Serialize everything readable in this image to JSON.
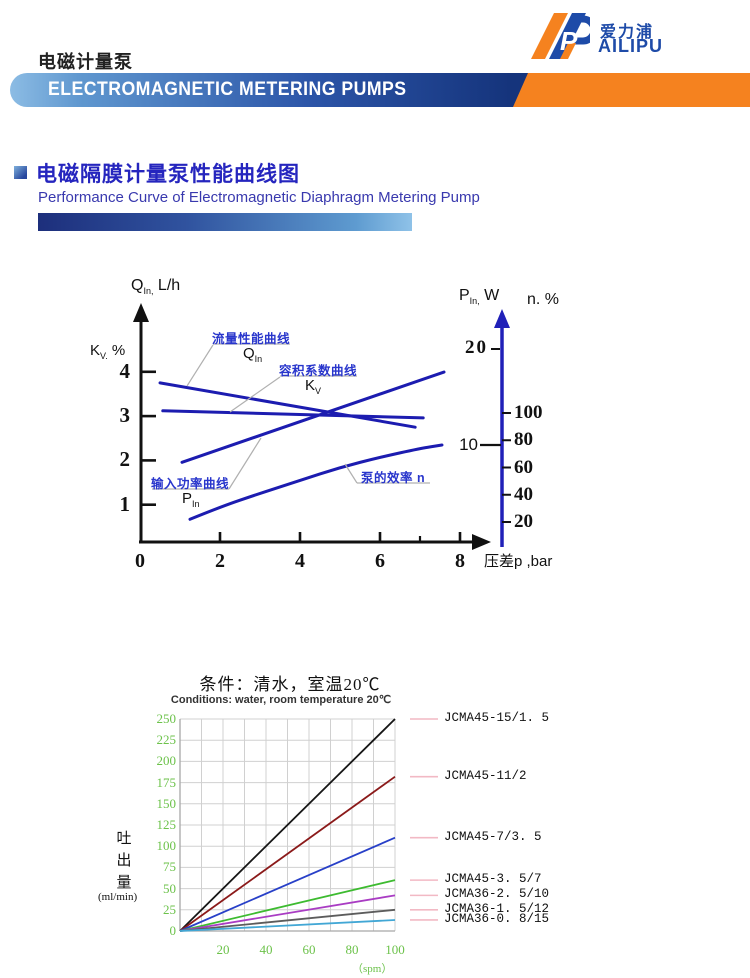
{
  "header": {
    "doc_title": "电磁计量泵",
    "banner": "ELECTROMAGNETIC METERING PUMPS",
    "logo_cn": "爱力浦",
    "logo_en": "AILIPU",
    "orange": "#f5821f",
    "logo_blue": "#1e4ba8"
  },
  "section": {
    "title": "电磁隔膜计量泵性能曲线图",
    "subtitle": "Performance Curve of Electromagnetic Diaphragm Metering Pump"
  },
  "chart_data": [
    {
      "type": "line",
      "name": "performance-curves",
      "x_label": "压差p ,bar",
      "xlim": [
        0,
        8.8
      ],
      "x_ticks": [
        2,
        4,
        6,
        8
      ],
      "x_origin_label": "0",
      "x_minor_ticks": [
        7
      ],
      "left_axis": {
        "label_q": {
          "main": "Q",
          "sub": "In,",
          "rest": " L/h"
        },
        "label_kv": {
          "main": "K",
          "sub": "V.",
          "rest": " %"
        },
        "ticks": [
          4,
          3,
          2,
          1
        ]
      },
      "right_axis_p": {
        "label": {
          "main": "P",
          "sub": "In,",
          "rest": " W"
        },
        "ticks": [
          20,
          10
        ]
      },
      "right_axis_n": {
        "label": "n. %",
        "ticks": [
          100,
          80,
          60,
          40,
          20
        ]
      },
      "curve_color": "#1c1cb0",
      "series": [
        {
          "key": "q",
          "label": "流量性能曲线",
          "symbol": {
            "main": "Q",
            "sub": "In"
          },
          "scale": "kv",
          "points": [
            [
              0.5,
              3.75
            ],
            [
              6.88,
              2.75
            ]
          ]
        },
        {
          "key": "kv",
          "label": "容积系数曲线",
          "symbol": {
            "main": "K",
            "sub": "V"
          },
          "scale": "kv",
          "points": [
            [
              0.57,
              3.12
            ],
            [
              7.08,
              2.96
            ]
          ]
        },
        {
          "key": "p",
          "label": "输入功率曲线",
          "symbol": {
            "main": "P",
            "sub": "In"
          },
          "scale": "p",
          "points": [
            [
              1.05,
              8.2
            ],
            [
              7.6,
              17.6
            ]
          ]
        },
        {
          "key": "n",
          "label": "泵的效率 n",
          "symbol": null,
          "scale": "n",
          "points": [
            [
              1.25,
              22
            ],
            [
              2,
              31
            ],
            [
              3,
              41
            ],
            [
              4,
              50.5
            ],
            [
              5,
              60
            ],
            [
              6,
              67.5
            ],
            [
              7,
              74
            ],
            [
              7.55,
              76.5
            ]
          ]
        }
      ]
    },
    {
      "type": "line",
      "name": "flow-vs-stroke-rate",
      "title": "条件：清水，室温20℃",
      "subtitle": "Conditions: water, room temperature 20℃",
      "y_label_cn": [
        "吐",
        "出",
        "量"
      ],
      "y_label_unit": "(ml/min)",
      "x_unit": "（spm）",
      "xlim": [
        0,
        100
      ],
      "ylim": [
        0,
        250
      ],
      "x_ticks": [
        20,
        40,
        60,
        80,
        100
      ],
      "y_ticks": [
        0,
        25,
        50,
        75,
        100,
        125,
        150,
        175,
        200,
        225,
        250
      ],
      "grid_step": {
        "x": 10,
        "y": 25
      },
      "tick_color": "#6cc24a",
      "legend_leader_color": "#f2b9c4",
      "series": [
        {
          "name": "JCMA45-15/1. 5",
          "color": "#161616",
          "points": [
            [
              0,
              0
            ],
            [
              100,
              250
            ]
          ]
        },
        {
          "name": "JCMA45-11/2",
          "color": "#8b1a1a",
          "points": [
            [
              0,
              0
            ],
            [
              100,
              182
            ]
          ]
        },
        {
          "name": "JCMA45-7/3. 5",
          "color": "#2840c8",
          "points": [
            [
              0,
              0
            ],
            [
              100,
              110
            ]
          ]
        },
        {
          "name": "JCMA45-3. 5/7",
          "color": "#3dbb30",
          "points": [
            [
              0,
              0
            ],
            [
              100,
              60
            ]
          ]
        },
        {
          "name": "JCMA36-2. 5/10",
          "color": "#a93cc3",
          "points": [
            [
              0,
              0
            ],
            [
              100,
              42
            ]
          ]
        },
        {
          "name": "JCMA36-1. 5/12",
          "color": "#5c5c5c",
          "points": [
            [
              0,
              0
            ],
            [
              100,
              25
            ]
          ]
        },
        {
          "name": "JCMA36-0. 8/15",
          "color": "#42a7d5",
          "points": [
            [
              0,
              0
            ],
            [
              100,
              13
            ]
          ]
        }
      ]
    }
  ]
}
